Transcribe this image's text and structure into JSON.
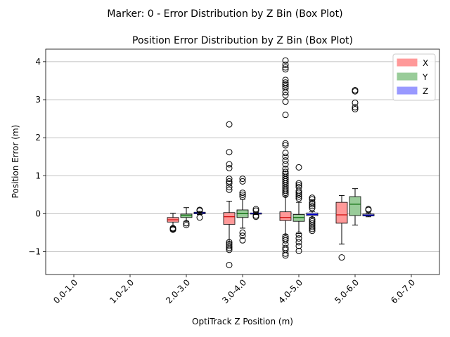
{
  "suptitle": "Marker: 0 - Error Distribution by Z Bin (Box Plot)",
  "chart_data": {
    "type": "box",
    "title": "Position Error Distribution by Z Bin (Box Plot)",
    "xlabel": "OptiTrack Z Position (m)",
    "ylabel": "Position Error (m)",
    "ylim": [
      -1.6,
      4.33
    ],
    "yticks": [
      -1,
      0,
      1,
      2,
      3,
      4
    ],
    "grid": "y",
    "legend_position": "top-right",
    "categories": [
      "0.0-1.0",
      "1.0-2.0",
      "2.0-3.0",
      "3.0-4.0",
      "4.0-5.0",
      "5.0-6.0",
      "6.0-7.0"
    ],
    "series": [
      {
        "name": "X",
        "color": "#ff9999",
        "median_color": "#cc0000",
        "boxes": [
          null,
          null,
          {
            "whislo": -0.35,
            "q1": -0.22,
            "med": -0.16,
            "q3": -0.1,
            "whishi": 0.01,
            "fliers": [
              -0.38,
              -0.4,
              -0.42
            ]
          },
          {
            "whislo": -0.75,
            "q1": -0.28,
            "med": -0.08,
            "q3": 0.03,
            "whishi": 0.33,
            "fliers": [
              2.35,
              1.62,
              1.3,
              1.2,
              0.92,
              0.85,
              0.8,
              0.7,
              0.63,
              -0.75,
              -0.8,
              -0.85,
              -0.9,
              -0.95,
              -1.35
            ]
          },
          {
            "whislo": -0.55,
            "q1": -0.18,
            "med": -0.1,
            "q3": 0.05,
            "whishi": 0.45,
            "fliers": [
              4.03,
              3.92,
              3.85,
              3.8,
              3.52,
              3.45,
              3.4,
              3.35,
              3.3,
              3.2,
              3.12,
              2.95,
              2.6,
              1.85,
              1.8,
              1.6,
              1.5,
              1.4,
              1.3,
              1.18,
              1.1,
              1.05,
              1.0,
              0.95,
              0.9,
              0.85,
              0.8,
              0.75,
              0.7,
              0.65,
              0.6,
              0.55,
              0.5,
              -0.6,
              -0.65,
              -0.7,
              -0.8,
              -0.9,
              -0.95,
              -1.05,
              -1.1
            ]
          },
          {
            "whislo": -0.8,
            "q1": -0.25,
            "med": -0.03,
            "q3": 0.3,
            "whishi": 0.48,
            "fliers": [
              -1.15
            ]
          },
          null
        ]
      },
      {
        "name": "Y",
        "color": "#99cc99",
        "median_color": "#006600",
        "boxes": [
          null,
          null,
          {
            "whislo": -0.2,
            "q1": -0.1,
            "med": -0.05,
            "q3": -0.01,
            "whishi": 0.16,
            "fliers": [
              -0.25,
              -0.3
            ]
          },
          {
            "whislo": -0.38,
            "q1": -0.1,
            "med": 0.0,
            "q3": 0.1,
            "whishi": 0.38,
            "fliers": [
              0.92,
              0.85,
              0.55,
              0.5,
              0.45,
              -0.5,
              -0.58,
              -0.7
            ]
          },
          {
            "whislo": -0.52,
            "q1": -0.2,
            "med": -0.1,
            "q3": -0.02,
            "whishi": 0.3,
            "fliers": [
              1.22,
              0.8,
              0.75,
              0.7,
              0.6,
              0.55,
              0.5,
              0.45,
              0.4,
              -0.55,
              -0.65,
              -0.75,
              -0.85,
              -0.98
            ]
          },
          {
            "whislo": -0.3,
            "q1": -0.05,
            "med": 0.25,
            "q3": 0.45,
            "whishi": 0.66,
            "fliers": [
              3.25,
              3.22,
              2.92,
              2.8,
              2.75
            ]
          },
          null
        ]
      },
      {
        "name": "Z",
        "color": "#9999ff",
        "median_color": "#0000cc",
        "boxes": [
          null,
          null,
          {
            "whislo": -0.02,
            "q1": 0.0,
            "med": 0.02,
            "q3": 0.04,
            "whishi": 0.06,
            "fliers": [
              0.1,
              0.08,
              -0.1
            ]
          },
          {
            "whislo": -0.02,
            "q1": -0.01,
            "med": 0.01,
            "q3": 0.02,
            "whishi": 0.04,
            "fliers": [
              0.12,
              0.08,
              -0.05,
              -0.08
            ]
          },
          {
            "whislo": -0.1,
            "q1": -0.05,
            "med": -0.02,
            "q3": 0.02,
            "whishi": 0.06,
            "fliers": [
              0.42,
              0.38,
              0.3,
              0.25,
              0.2,
              0.15,
              -0.15,
              -0.2,
              -0.25,
              -0.3,
              -0.35,
              -0.4,
              -0.45
            ]
          },
          {
            "whislo": -0.08,
            "q1": -0.06,
            "med": -0.04,
            "q3": -0.01,
            "whishi": 0.02,
            "fliers": [
              0.12,
              0.1
            ]
          },
          null
        ]
      }
    ]
  }
}
